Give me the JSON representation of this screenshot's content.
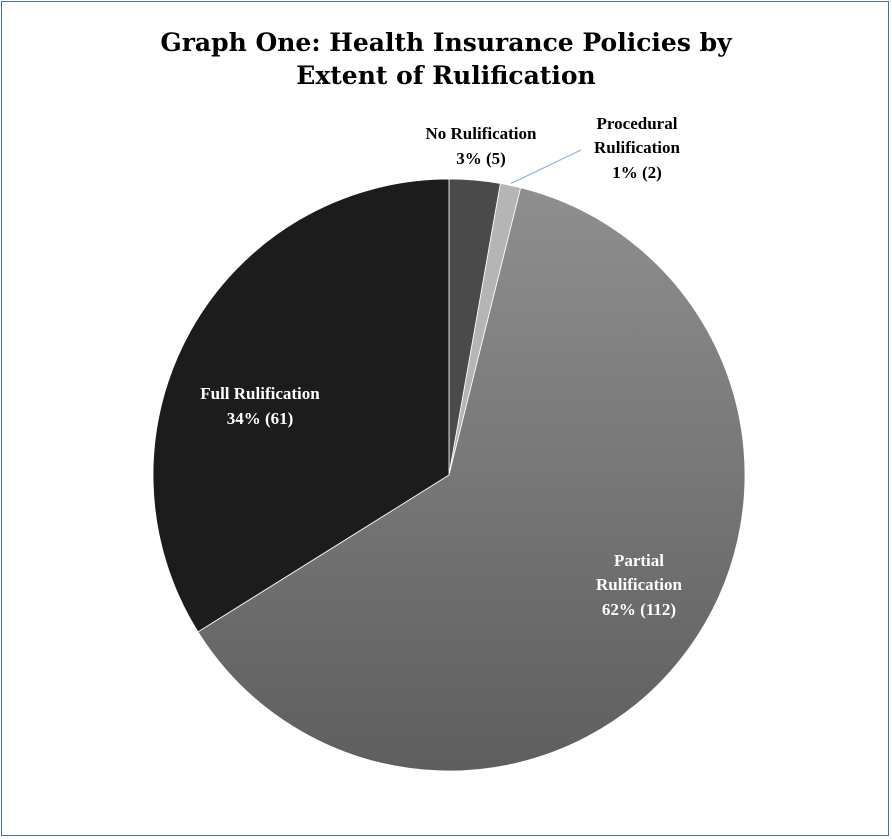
{
  "chart_data": {
    "type": "pie",
    "title_lines": [
      "Graph One: Health Insurance Policies by",
      "Extent of Rulification"
    ],
    "slices": [
      {
        "name": "No Rulification",
        "percent_label": "3% (5)",
        "count": 5,
        "color": "#4a4a4a",
        "label_color": "#000000"
      },
      {
        "name": "Procedural Rulification",
        "name_lines": [
          "Procedural",
          "Rulification"
        ],
        "percent_label": "1% (2)",
        "count": 2,
        "color": "#b5b5b5",
        "label_color": "#000000"
      },
      {
        "name": "Partial Rulification",
        "name_lines": [
          "Partial",
          "Rulification"
        ],
        "percent_label": "62% (112)",
        "count": 112,
        "color": "#7d7d7d",
        "label_color": "#ffffff"
      },
      {
        "name": "Full Rulification",
        "percent_label": "34% (61)",
        "count": 61,
        "color": "#1c1c1c",
        "label_color": "#ffffff"
      }
    ]
  }
}
